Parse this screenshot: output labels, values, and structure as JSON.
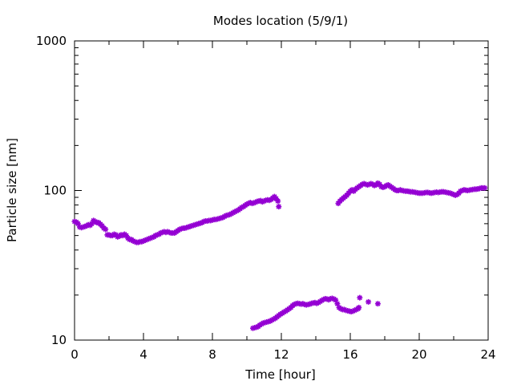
{
  "chart_data": {
    "type": "scatter",
    "title": "Modes location (5/9/1)",
    "xlabel": "Time [hour]",
    "ylabel": "Particle size [nm]",
    "xlim": [
      0,
      24
    ],
    "ylim": [
      10,
      1000
    ],
    "yscale": "log",
    "grid": false,
    "legend": "none",
    "marker_color": "#9400d3",
    "x_ticks": [
      0,
      4,
      8,
      12,
      16,
      20,
      24
    ],
    "x_tick_labels": [
      "0",
      "4",
      "8",
      "12",
      "16",
      "20",
      "24"
    ],
    "y_ticks": [
      10,
      100,
      1000
    ],
    "y_tick_labels": [
      "10",
      "100",
      "1000"
    ],
    "series": [
      {
        "values": [
          [
            0.0,
            62
          ],
          [
            0.1,
            61.5
          ],
          [
            0.2,
            60
          ],
          [
            0.3,
            57
          ],
          [
            0.4,
            56.5
          ],
          [
            0.5,
            57
          ],
          [
            0.6,
            57.5
          ],
          [
            0.7,
            58
          ],
          [
            0.8,
            59
          ],
          [
            0.9,
            58.5
          ],
          [
            1.0,
            60
          ],
          [
            1.1,
            63
          ],
          [
            1.2,
            62
          ],
          [
            1.3,
            61
          ],
          [
            1.4,
            61
          ],
          [
            1.5,
            59.5
          ],
          [
            1.6,
            58
          ],
          [
            1.7,
            56
          ],
          [
            1.8,
            55
          ],
          [
            1.9,
            50.5
          ],
          [
            2.0,
            50.5
          ],
          [
            2.1,
            50
          ],
          [
            2.2,
            50
          ],
          [
            2.3,
            51
          ],
          [
            2.4,
            50.5
          ],
          [
            2.5,
            49
          ],
          [
            2.6,
            49.5
          ],
          [
            2.7,
            50.5
          ],
          [
            2.8,
            50
          ],
          [
            2.9,
            51
          ],
          [
            3.0,
            50
          ],
          [
            3.1,
            48
          ],
          [
            3.2,
            47
          ],
          [
            3.3,
            47
          ],
          [
            3.4,
            46
          ],
          [
            3.5,
            45.5
          ],
          [
            3.6,
            45
          ],
          [
            3.7,
            45
          ],
          [
            3.8,
            45.5
          ],
          [
            3.9,
            45.5
          ],
          [
            4.0,
            46
          ],
          [
            4.1,
            46.5
          ],
          [
            4.2,
            47
          ],
          [
            4.3,
            47.5
          ],
          [
            4.4,
            48
          ],
          [
            4.5,
            48.5
          ],
          [
            4.6,
            49
          ],
          [
            4.7,
            50
          ],
          [
            4.8,
            50.5
          ],
          [
            4.9,
            51
          ],
          [
            5.0,
            52
          ],
          [
            5.1,
            52.5
          ],
          [
            5.2,
            53
          ],
          [
            5.3,
            52.5
          ],
          [
            5.4,
            53
          ],
          [
            5.5,
            52.5
          ],
          [
            5.6,
            52
          ],
          [
            5.7,
            52
          ],
          [
            5.8,
            52
          ],
          [
            5.9,
            53
          ],
          [
            6.0,
            54
          ],
          [
            6.1,
            55
          ],
          [
            6.2,
            55.5
          ],
          [
            6.3,
            56
          ],
          [
            6.4,
            56
          ],
          [
            6.5,
            56.5
          ],
          [
            6.6,
            57
          ],
          [
            6.7,
            57.5
          ],
          [
            6.8,
            58
          ],
          [
            6.9,
            58.5
          ],
          [
            7.0,
            59
          ],
          [
            7.1,
            59.5
          ],
          [
            7.2,
            60
          ],
          [
            7.3,
            60.5
          ],
          [
            7.4,
            61
          ],
          [
            7.5,
            62
          ],
          [
            7.6,
            62.5
          ],
          [
            7.7,
            62.5
          ],
          [
            7.8,
            63
          ],
          [
            7.9,
            63
          ],
          [
            8.0,
            63.5
          ],
          [
            8.1,
            64
          ],
          [
            8.2,
            64
          ],
          [
            8.3,
            64.5
          ],
          [
            8.4,
            65
          ],
          [
            8.5,
            65.5
          ],
          [
            8.6,
            66
          ],
          [
            8.7,
            67
          ],
          [
            8.8,
            68
          ],
          [
            8.9,
            68.5
          ],
          [
            9.0,
            69
          ],
          [
            9.1,
            70
          ],
          [
            9.2,
            71
          ],
          [
            9.3,
            72
          ],
          [
            9.4,
            73
          ],
          [
            9.5,
            74
          ],
          [
            9.6,
            75.5
          ],
          [
            9.7,
            77
          ],
          [
            9.8,
            78
          ],
          [
            9.9,
            79.5
          ],
          [
            10.0,
            81
          ],
          [
            10.1,
            82
          ],
          [
            10.2,
            83
          ],
          [
            10.3,
            82
          ],
          [
            10.4,
            82.5
          ],
          [
            10.5,
            83.5
          ],
          [
            10.6,
            84.5
          ],
          [
            10.7,
            85
          ],
          [
            10.8,
            85.5
          ],
          [
            10.9,
            84
          ],
          [
            11.0,
            85
          ],
          [
            11.1,
            86
          ],
          [
            11.2,
            86.5
          ],
          [
            11.3,
            86
          ],
          [
            11.4,
            87
          ],
          [
            11.5,
            89
          ],
          [
            11.6,
            91
          ],
          [
            11.7,
            88
          ],
          [
            11.8,
            85
          ],
          [
            11.85,
            78
          ],
          [
            15.3,
            82
          ],
          [
            15.4,
            85
          ],
          [
            15.5,
            87
          ],
          [
            15.6,
            89
          ],
          [
            15.7,
            91
          ],
          [
            15.8,
            93
          ],
          [
            15.9,
            96
          ],
          [
            16.0,
            99
          ],
          [
            16.1,
            101
          ],
          [
            16.2,
            99
          ],
          [
            16.3,
            102
          ],
          [
            16.4,
            104
          ],
          [
            16.5,
            106
          ],
          [
            16.6,
            108
          ],
          [
            16.7,
            110
          ],
          [
            16.8,
            111
          ],
          [
            16.9,
            110
          ],
          [
            17.0,
            109
          ],
          [
            17.1,
            110
          ],
          [
            17.2,
            111
          ],
          [
            17.3,
            110
          ],
          [
            17.4,
            108
          ],
          [
            17.5,
            109
          ],
          [
            17.6,
            112
          ],
          [
            17.7,
            110
          ],
          [
            17.8,
            106
          ],
          [
            17.9,
            105
          ],
          [
            18.0,
            106
          ],
          [
            18.1,
            108
          ],
          [
            18.2,
            109
          ],
          [
            18.3,
            107
          ],
          [
            18.4,
            105
          ],
          [
            18.5,
            103
          ],
          [
            18.6,
            101
          ],
          [
            18.7,
            100
          ],
          [
            18.8,
            100
          ],
          [
            18.9,
            101
          ],
          [
            19.0,
            100
          ],
          [
            19.1,
            99.5
          ],
          [
            19.2,
            99
          ],
          [
            19.3,
            99
          ],
          [
            19.4,
            98.5
          ],
          [
            19.5,
            98
          ],
          [
            19.6,
            98
          ],
          [
            19.7,
            97.5
          ],
          [
            19.8,
            97
          ],
          [
            19.9,
            96.5
          ],
          [
            20.0,
            96
          ],
          [
            20.1,
            96
          ],
          [
            20.2,
            96
          ],
          [
            20.3,
            96.5
          ],
          [
            20.4,
            97
          ],
          [
            20.5,
            97
          ],
          [
            20.6,
            96.5
          ],
          [
            20.7,
            96
          ],
          [
            20.8,
            96.5
          ],
          [
            20.9,
            97
          ],
          [
            21.0,
            97.5
          ],
          [
            21.1,
            97
          ],
          [
            21.2,
            97.5
          ],
          [
            21.3,
            98
          ],
          [
            21.4,
            98
          ],
          [
            21.5,
            97.5
          ],
          [
            21.6,
            97
          ],
          [
            21.7,
            96.5
          ],
          [
            21.8,
            96
          ],
          [
            21.9,
            95
          ],
          [
            22.0,
            94
          ],
          [
            22.1,
            93
          ],
          [
            22.2,
            94
          ],
          [
            22.3,
            96
          ],
          [
            22.4,
            99
          ],
          [
            22.5,
            100
          ],
          [
            22.6,
            101
          ],
          [
            22.7,
            100.5
          ],
          [
            22.8,
            100
          ],
          [
            22.9,
            100.5
          ],
          [
            23.0,
            101
          ],
          [
            23.1,
            101.5
          ],
          [
            23.2,
            102
          ],
          [
            23.3,
            102
          ],
          [
            23.4,
            102.5
          ],
          [
            23.5,
            103
          ],
          [
            23.6,
            104
          ],
          [
            23.7,
            104
          ],
          [
            23.8,
            104
          ]
        ]
      },
      {
        "values": [
          [
            10.35,
            12.0
          ],
          [
            10.45,
            12.1
          ],
          [
            10.55,
            12.2
          ],
          [
            10.65,
            12.3
          ],
          [
            10.75,
            12.6
          ],
          [
            10.85,
            12.8
          ],
          [
            10.95,
            13.0
          ],
          [
            11.05,
            13.1
          ],
          [
            11.15,
            13.2
          ],
          [
            11.25,
            13.3
          ],
          [
            11.35,
            13.4
          ],
          [
            11.45,
            13.6
          ],
          [
            11.55,
            13.8
          ],
          [
            11.65,
            14.0
          ],
          [
            11.75,
            14.3
          ],
          [
            11.85,
            14.6
          ],
          [
            11.95,
            14.9
          ],
          [
            12.05,
            15.1
          ],
          [
            12.15,
            15.4
          ],
          [
            12.25,
            15.6
          ],
          [
            12.35,
            15.9
          ],
          [
            12.45,
            16.2
          ],
          [
            12.55,
            16.5
          ],
          [
            12.65,
            17.0
          ],
          [
            12.75,
            17.3
          ],
          [
            12.85,
            17.5
          ],
          [
            12.95,
            17.6
          ],
          [
            13.05,
            17.5
          ],
          [
            13.15,
            17.4
          ],
          [
            13.25,
            17.5
          ],
          [
            13.35,
            17.3
          ],
          [
            13.45,
            17.2
          ],
          [
            13.55,
            17.3
          ],
          [
            13.65,
            17.4
          ],
          [
            13.75,
            17.6
          ],
          [
            13.85,
            17.7
          ],
          [
            13.95,
            17.8
          ],
          [
            14.05,
            17.6
          ],
          [
            14.15,
            17.8
          ],
          [
            14.25,
            18.1
          ],
          [
            14.35,
            18.4
          ],
          [
            14.45,
            18.7
          ],
          [
            14.55,
            18.9
          ],
          [
            14.65,
            18.8
          ],
          [
            14.75,
            18.6
          ],
          [
            14.85,
            18.9
          ],
          [
            14.95,
            19.0
          ],
          [
            15.05,
            18.8
          ],
          [
            15.15,
            18.5
          ],
          [
            15.25,
            17.5
          ],
          [
            15.35,
            16.5
          ],
          [
            15.45,
            16.2
          ],
          [
            15.55,
            16.0
          ],
          [
            15.65,
            16.0
          ],
          [
            15.75,
            15.8
          ],
          [
            15.85,
            15.7
          ],
          [
            15.95,
            15.6
          ],
          [
            16.05,
            15.5
          ],
          [
            16.15,
            15.6
          ],
          [
            16.25,
            15.8
          ],
          [
            16.35,
            16.0
          ],
          [
            16.45,
            16.2
          ],
          [
            16.5,
            16.5
          ],
          [
            16.55,
            19.2
          ],
          [
            17.05,
            18.0
          ],
          [
            17.6,
            17.5
          ]
        ]
      }
    ]
  }
}
